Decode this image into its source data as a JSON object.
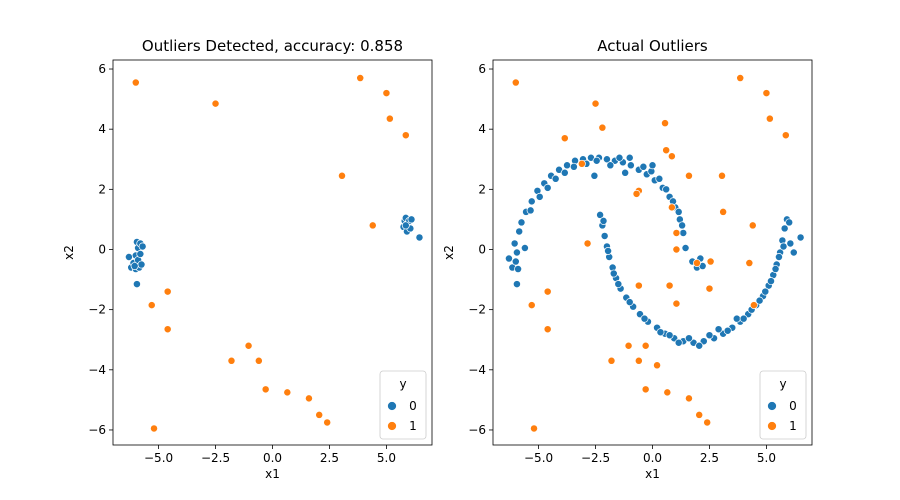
{
  "chart_data": [
    {
      "type": "scatter",
      "title": "Outliers Detected, accuracy: 0.858",
      "xlabel": "x1",
      "ylabel": "x2",
      "xlim": [
        -7.0,
        7.0
      ],
      "ylim": [
        -6.5,
        6.3
      ],
      "xticks": [
        -5.0,
        -2.5,
        0.0,
        2.5,
        5.0
      ],
      "xtick_labels": [
        "−5.0",
        "−2.5",
        "0.0",
        "2.5",
        "5.0"
      ],
      "yticks": [
        -6,
        -4,
        -2,
        0,
        2,
        4,
        6
      ],
      "ytick_labels": [
        "−6",
        "−4",
        "−2",
        "0",
        "2",
        "4",
        "6"
      ],
      "grid": false,
      "legend": {
        "title": "y",
        "placement": "lower-right",
        "entries": [
          "0",
          "1"
        ]
      },
      "series": [
        {
          "name": "0",
          "color": "#1f77b4",
          "points": [
            [
              -6.3,
              -0.25
            ],
            [
              -6.2,
              -0.6
            ],
            [
              -6.1,
              -0.45
            ],
            [
              -6.0,
              -0.2
            ],
            [
              -6.0,
              -0.65
            ],
            [
              -5.95,
              0.25
            ],
            [
              -5.9,
              -0.35
            ],
            [
              -5.9,
              0.05
            ],
            [
              -5.85,
              -0.6
            ],
            [
              -5.8,
              0.2
            ],
            [
              -5.75,
              -0.5
            ],
            [
              -5.7,
              0.1
            ],
            [
              -5.95,
              -1.15
            ],
            [
              -6.05,
              -0.55
            ],
            [
              -5.8,
              -0.15
            ],
            [
              5.75,
              0.75
            ],
            [
              5.8,
              0.95
            ],
            [
              5.85,
              1.05
            ],
            [
              5.9,
              0.6
            ],
            [
              5.95,
              0.85
            ],
            [
              6.0,
              0.95
            ],
            [
              6.05,
              0.7
            ],
            [
              6.1,
              1.0
            ],
            [
              5.85,
              0.8
            ],
            [
              6.45,
              0.4
            ]
          ]
        },
        {
          "name": "1",
          "color": "#ff7f0e",
          "points": [
            [
              -6.0,
              5.55
            ],
            [
              -2.5,
              4.85
            ],
            [
              3.85,
              5.7
            ],
            [
              5.0,
              5.2
            ],
            [
              5.15,
              4.35
            ],
            [
              5.85,
              3.8
            ],
            [
              3.05,
              2.45
            ],
            [
              4.4,
              0.8
            ],
            [
              -5.3,
              -1.85
            ],
            [
              -4.6,
              -1.4
            ],
            [
              -4.6,
              -2.65
            ],
            [
              -1.05,
              -3.2
            ],
            [
              -1.8,
              -3.7
            ],
            [
              -0.6,
              -3.7
            ],
            [
              -0.3,
              -4.65
            ],
            [
              0.65,
              -4.75
            ],
            [
              1.6,
              -4.95
            ],
            [
              2.05,
              -5.5
            ],
            [
              2.4,
              -5.75
            ],
            [
              -5.2,
              -5.95
            ]
          ]
        }
      ]
    },
    {
      "type": "scatter",
      "title": "Actual Outliers",
      "xlabel": "x1",
      "ylabel": "x2",
      "xlim": [
        -7.0,
        7.0
      ],
      "ylim": [
        -6.5,
        6.3
      ],
      "xticks": [
        -5.0,
        -2.5,
        0.0,
        2.5,
        5.0
      ],
      "xtick_labels": [
        "−5.0",
        "−2.5",
        "0.0",
        "2.5",
        "5.0"
      ],
      "yticks": [
        -6,
        -4,
        -2,
        0,
        2,
        4,
        6
      ],
      "ytick_labels": [
        "−6",
        "−4",
        "−2",
        "0",
        "2",
        "4",
        "6"
      ],
      "grid": false,
      "legend": {
        "title": "y",
        "placement": "lower-right",
        "entries": [
          "0",
          "1"
        ]
      },
      "series": [
        {
          "name": "0",
          "color": "#1f77b4",
          "points": [
            [
              -6.3,
              -0.3
            ],
            [
              -6.15,
              -0.6
            ],
            [
              -6.0,
              -0.4
            ],
            [
              -5.9,
              -0.65
            ],
            [
              -6.05,
              0.2
            ],
            [
              -5.95,
              -0.1
            ],
            [
              -5.95,
              -1.15
            ],
            [
              -5.85,
              0.6
            ],
            [
              -5.75,
              0.9
            ],
            [
              -5.55,
              1.25
            ],
            [
              -5.3,
              1.6
            ],
            [
              -5.05,
              1.95
            ],
            [
              -4.75,
              2.2
            ],
            [
              -4.45,
              2.45
            ],
            [
              -4.1,
              2.65
            ],
            [
              -3.75,
              2.8
            ],
            [
              -3.4,
              2.95
            ],
            [
              -3.05,
              3.0
            ],
            [
              -2.7,
              3.05
            ],
            [
              -2.35,
              3.05
            ],
            [
              -2.0,
              3.0
            ],
            [
              -1.65,
              2.95
            ],
            [
              -1.3,
              2.9
            ],
            [
              -0.95,
              2.8
            ],
            [
              -0.6,
              2.65
            ],
            [
              -0.25,
              2.5
            ],
            [
              0.1,
              2.3
            ],
            [
              0.45,
              2.05
            ],
            [
              0.75,
              1.75
            ],
            [
              1.0,
              1.4
            ],
            [
              1.2,
              1.0
            ],
            [
              1.35,
              0.55
            ],
            [
              1.45,
              0.05
            ],
            [
              -5.6,
              0.05
            ],
            [
              -5.35,
              1.3
            ],
            [
              -4.95,
              1.75
            ],
            [
              -4.6,
              2.05
            ],
            [
              -4.25,
              2.35
            ],
            [
              -3.85,
              2.55
            ],
            [
              -3.45,
              2.75
            ],
            [
              -2.9,
              2.85
            ],
            [
              -2.45,
              2.95
            ],
            [
              -1.85,
              2.8
            ],
            [
              -1.45,
              3.05
            ],
            [
              -1.0,
              3.05
            ],
            [
              -0.4,
              2.75
            ],
            [
              -0.05,
              2.6
            ],
            [
              0.3,
              2.35
            ],
            [
              0.6,
              2.0
            ],
            [
              0.9,
              1.6
            ],
            [
              1.15,
              1.25
            ],
            [
              1.3,
              0.8
            ],
            [
              -2.55,
              2.45
            ],
            [
              -1.2,
              2.55
            ],
            [
              0.0,
              2.8
            ],
            [
              -2.3,
              1.15
            ],
            [
              -2.2,
              0.8
            ],
            [
              -2.1,
              0.45
            ],
            [
              -2.0,
              0.1
            ],
            [
              -1.9,
              -0.25
            ],
            [
              -1.75,
              -0.6
            ],
            [
              -1.6,
              -0.95
            ],
            [
              -1.4,
              -1.3
            ],
            [
              -1.15,
              -1.6
            ],
            [
              -0.85,
              -1.9
            ],
            [
              -0.55,
              -2.15
            ],
            [
              -0.2,
              -2.4
            ],
            [
              0.2,
              -2.6
            ],
            [
              0.55,
              -2.8
            ],
            [
              0.95,
              -2.95
            ],
            [
              1.35,
              -3.05
            ],
            [
              1.8,
              -3.1
            ],
            [
              2.25,
              -3.05
            ],
            [
              2.7,
              -2.95
            ],
            [
              3.1,
              -2.8
            ],
            [
              3.5,
              -2.6
            ],
            [
              3.85,
              -2.4
            ],
            [
              4.2,
              -2.15
            ],
            [
              4.55,
              -1.85
            ],
            [
              4.85,
              -1.55
            ],
            [
              5.1,
              -1.2
            ],
            [
              5.3,
              -0.85
            ],
            [
              5.45,
              -0.5
            ],
            [
              5.6,
              -0.1
            ],
            [
              5.7,
              0.3
            ],
            [
              5.8,
              0.7
            ],
            [
              5.9,
              1.0
            ],
            [
              -2.15,
              0.95
            ],
            [
              -1.95,
              -0.05
            ],
            [
              -1.7,
              -0.8
            ],
            [
              -1.5,
              -1.15
            ],
            [
              -1.0,
              -1.75
            ],
            [
              -0.35,
              -2.3
            ],
            [
              0.35,
              -2.75
            ],
            [
              0.75,
              -2.85
            ],
            [
              1.15,
              -3.1
            ],
            [
              1.6,
              -2.95
            ],
            [
              2.05,
              -3.2
            ],
            [
              2.5,
              -2.85
            ],
            [
              2.9,
              -2.65
            ],
            [
              3.3,
              -2.7
            ],
            [
              3.7,
              -2.3
            ],
            [
              4.0,
              -2.3
            ],
            [
              4.35,
              -2.0
            ],
            [
              4.7,
              -1.7
            ],
            [
              4.95,
              -1.4
            ],
            [
              5.2,
              -1.05
            ],
            [
              5.4,
              -0.65
            ],
            [
              5.55,
              -0.25
            ],
            [
              5.75,
              0.1
            ],
            [
              6.05,
              0.2
            ],
            [
              6.2,
              -0.1
            ],
            [
              6.5,
              0.4
            ],
            [
              6.0,
              0.9
            ],
            [
              1.75,
              -0.4
            ],
            [
              1.95,
              -0.6
            ],
            [
              2.1,
              -0.3
            ],
            [
              2.2,
              -0.55
            ]
          ]
        },
        {
          "name": "1",
          "color": "#ff7f0e",
          "points": [
            [
              -6.0,
              5.55
            ],
            [
              -2.5,
              4.85
            ],
            [
              3.85,
              5.7
            ],
            [
              5.0,
              5.2
            ],
            [
              5.15,
              4.35
            ],
            [
              5.85,
              3.8
            ],
            [
              3.05,
              2.45
            ],
            [
              4.4,
              0.8
            ],
            [
              -5.3,
              -1.85
            ],
            [
              -4.6,
              -1.4
            ],
            [
              -4.6,
              -2.65
            ],
            [
              -1.05,
              -3.2
            ],
            [
              -1.8,
              -3.7
            ],
            [
              -0.6,
              -3.7
            ],
            [
              -0.3,
              -4.65
            ],
            [
              0.65,
              -4.75
            ],
            [
              1.6,
              -4.95
            ],
            [
              2.05,
              -5.5
            ],
            [
              2.4,
              -5.75
            ],
            [
              -5.2,
              -5.95
            ],
            [
              -3.85,
              3.7
            ],
            [
              -2.2,
              4.05
            ],
            [
              -3.1,
              2.85
            ],
            [
              0.55,
              4.2
            ],
            [
              0.6,
              3.3
            ],
            [
              0.85,
              3.1
            ],
            [
              -0.6,
              1.95
            ],
            [
              -0.7,
              1.85
            ],
            [
              1.6,
              2.45
            ],
            [
              0.85,
              1.4
            ],
            [
              1.05,
              0.55
            ],
            [
              1.05,
              0.0
            ],
            [
              3.1,
              1.25
            ],
            [
              -2.85,
              0.2
            ],
            [
              2.55,
              -0.4
            ],
            [
              1.95,
              -0.45
            ],
            [
              0.75,
              -1.2
            ],
            [
              1.05,
              -1.8
            ],
            [
              2.5,
              -1.3
            ],
            [
              4.45,
              -1.85
            ],
            [
              4.25,
              -0.45
            ],
            [
              -0.6,
              -1.2
            ],
            [
              -0.3,
              -3.2
            ],
            [
              0.2,
              -3.85
            ]
          ]
        }
      ]
    }
  ]
}
